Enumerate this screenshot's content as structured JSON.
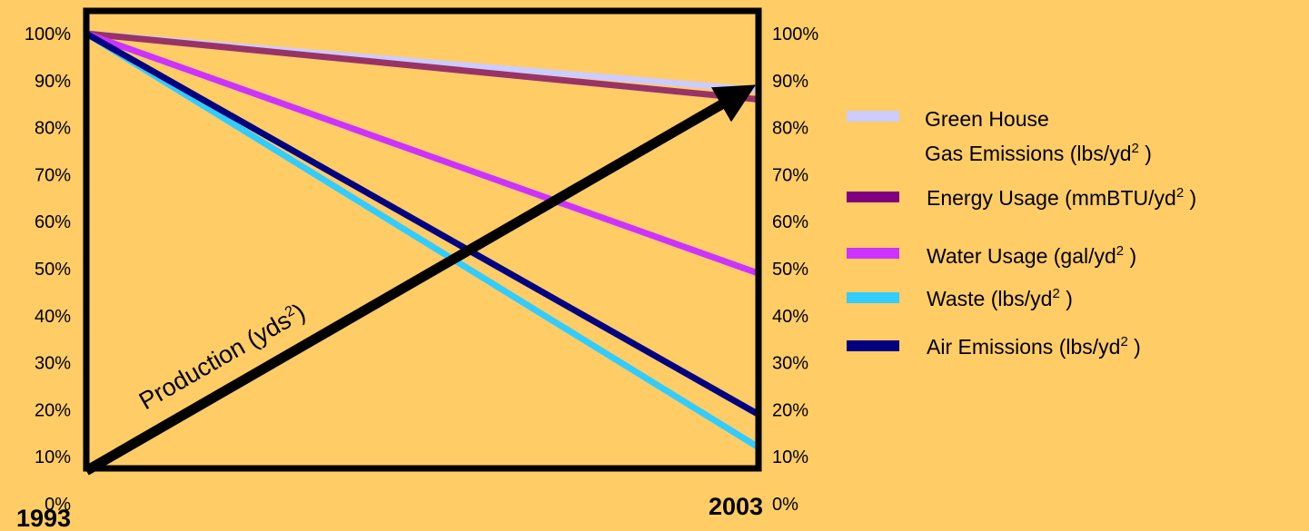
{
  "chart_data": {
    "type": "line",
    "x": [
      "1993",
      "2003"
    ],
    "ylim": [
      0,
      100
    ],
    "y_ticks": [
      "0%",
      "10%",
      "20%",
      "30%",
      "40%",
      "50%",
      "60%",
      "70%",
      "80%",
      "90%",
      "100%"
    ],
    "grid": false,
    "legend_position": "right",
    "series": [
      {
        "name": "Green House",
        "name_line2": "Gas Emissions (lbs/yd",
        "name_suffix": " )",
        "color": "#ccccff",
        "values": [
          100,
          88
        ]
      },
      {
        "name": "Energy Usage (mmBTU/yd",
        "name_suffix": " )",
        "color": "#993366",
        "legend_color": "#800080",
        "values": [
          100,
          86
        ]
      },
      {
        "name": "Water Usage (gal/yd",
        "name_suffix": " )",
        "color": "#cc33ff",
        "values": [
          100,
          49
        ]
      },
      {
        "name": "Waste (lbs/yd",
        "name_suffix": " )",
        "color": "#33ccff",
        "values": [
          100,
          12
        ]
      },
      {
        "name": "Air Emissions (lbs/yd",
        "name_suffix": " )",
        "color": "#000080",
        "values": [
          100,
          19
        ]
      }
    ],
    "superscript": "2",
    "production": {
      "label": "Production (yds",
      "label_suffix": ")",
      "color": "#000000",
      "values": [
        7,
        87
      ]
    }
  }
}
